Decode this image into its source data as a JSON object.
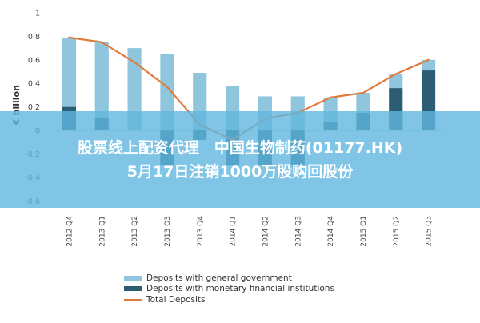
{
  "chart_data": {
    "type": "bar",
    "ylabel": "€ billion",
    "ylim": [
      -0.7,
      1
    ],
    "yticks": [
      "1",
      "0.8",
      "0.6",
      "0.4",
      "0.2",
      "0",
      "-0.2",
      "-0.4",
      "-0.6"
    ],
    "categories": [
      "2012 Q4",
      "2013 Q1",
      "2013 Q2",
      "2013 Q3",
      "2013 Q4",
      "2014 Q1",
      "2014 Q2",
      "2014 Q3",
      "2014 Q4",
      "2015 Q1",
      "2015 Q2",
      "2015 Q3"
    ],
    "series": [
      {
        "name": "Deposits with general government",
        "kind": "bar",
        "color": "#8fc6dd",
        "values": [
          0.59,
          0.64,
          0.7,
          0.65,
          0.49,
          0.38,
          0.29,
          0.29,
          0.21,
          0.17,
          0.12,
          0.09
        ]
      },
      {
        "name": "Deposits with monetary financial institutions",
        "kind": "bar",
        "color": "#2b5d74",
        "values": [
          0.2,
          0.11,
          0.0,
          -0.3,
          -0.08,
          -0.3,
          -0.3,
          -0.3,
          0.07,
          0.15,
          0.36,
          0.51
        ]
      },
      {
        "name": "Total Deposits",
        "kind": "line",
        "color": "#e07b3e",
        "values": [
          0.79,
          0.75,
          0.58,
          0.37,
          0.05,
          -0.08,
          0.1,
          0.15,
          0.28,
          0.32,
          0.48,
          0.6
        ]
      }
    ],
    "legend_position": "bottom",
    "grid": false
  },
  "banner": {
    "line1": "股票线上配资代理　中国生物制药(01177.HK)",
    "line2": "5月17日注销1000万股购回股份"
  },
  "colors": {
    "banner_overlay": "#60b6de"
  }
}
